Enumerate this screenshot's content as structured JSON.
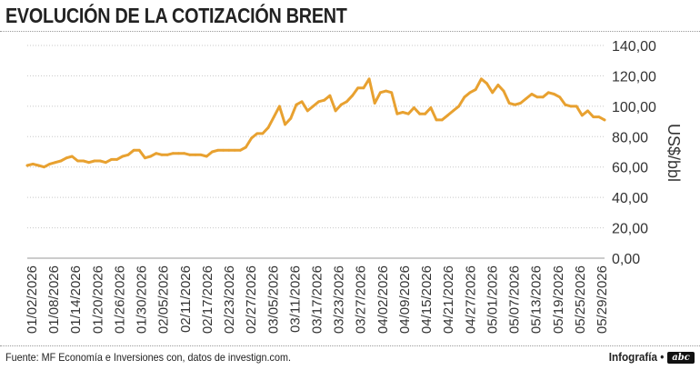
{
  "header": {
    "title": "EVOLUCIÓN DE LA COTIZACIÓN BRENT"
  },
  "footer": {
    "source": "Fuente: MF Economía e Inversiones con, datos de investign.com.",
    "credit": "Infografía •",
    "logo_text": "abc"
  },
  "colors": {
    "line": "#e8a130",
    "grid": "#c8c8c8",
    "text": "#333333",
    "axis": "#999999"
  },
  "chart_data": {
    "type": "line",
    "title": "EVOLUCIÓN DE LA COTIZACIÓN BRENT",
    "xlabel": "",
    "ylabel": "US$/bbl",
    "ylim": [
      0,
      140
    ],
    "yticks": [
      "0,00",
      "20,00",
      "40,00",
      "60,00",
      "80,00",
      "100,00",
      "120,00",
      "140,00"
    ],
    "grid": true,
    "legend": "none",
    "x_tick_labels": [
      "01/02/2026",
      "01/08/2026",
      "01/14/2026",
      "01/20/2026",
      "01/26/2026",
      "01/30/2026",
      "02/05/2026",
      "02/11/2026",
      "02/17/2026",
      "02/23/2026",
      "02/27/2026",
      "03/05/2026",
      "03/11/2026",
      "03/17/2026",
      "03/23/2026",
      "03/27/2026",
      "04/02/2026",
      "04/09/2026",
      "04/15/2026",
      "04/21/2026",
      "04/27/2026",
      "05/01/2026",
      "05/07/2026",
      "05/13/2026",
      "05/19/2026",
      "05/25/2026",
      "05/29/2026"
    ],
    "series": [
      {
        "values": [
          61,
          62,
          61,
          60,
          62,
          63,
          64,
          66,
          67,
          64,
          64,
          63,
          64,
          64,
          63,
          65,
          65,
          67,
          68,
          71,
          71,
          66,
          67,
          69,
          68,
          68,
          69,
          69,
          69,
          68,
          68,
          68,
          67,
          70,
          71,
          71,
          71,
          71,
          71,
          73,
          79,
          82,
          82,
          86,
          93,
          100,
          88,
          92,
          101,
          103,
          97,
          100,
          103,
          104,
          107,
          97,
          101,
          103,
          107,
          112,
          112,
          118,
          102,
          109,
          110,
          109,
          95,
          96,
          95,
          99,
          95,
          95,
          99,
          91,
          91,
          94,
          97,
          100,
          106,
          109,
          111,
          118,
          115,
          109,
          114,
          110,
          102,
          101,
          102,
          105,
          108,
          106,
          106,
          109,
          108,
          106,
          101,
          100,
          100,
          94,
          97,
          93,
          93,
          91
        ]
      }
    ]
  }
}
